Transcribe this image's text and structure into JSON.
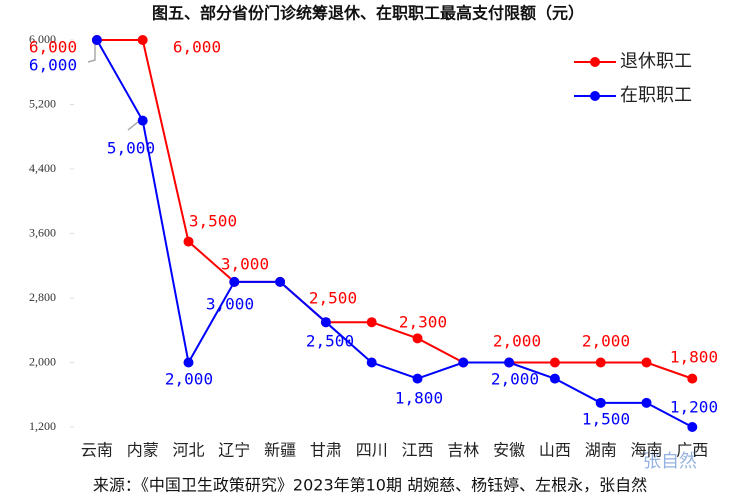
{
  "chart_data": {
    "type": "line",
    "title": "图五、部分省份门诊统筹退休、在职职工最高支付限额（元）",
    "source": "来源：《中国卫生政策研究》2023年第10期 胡婉慈、杨钰婷、左根永，张自然",
    "watermark": "张自然",
    "categories": [
      "云南",
      "内蒙",
      "河北",
      "辽宁",
      "新疆",
      "甘肃",
      "四川",
      "江西",
      "吉林",
      "安徽",
      "山西",
      "湖南",
      "海南",
      "广西"
    ],
    "series": [
      {
        "name": "退休职工",
        "color": "#ff0000",
        "values": [
          6000,
          6000,
          3500,
          3000,
          3000,
          2500,
          2500,
          2300,
          2000,
          2000,
          2000,
          2000,
          2000,
          1800
        ],
        "value_labels": [
          "6,000",
          "6,000",
          "3,500",
          "3,000",
          null,
          "2,500",
          null,
          "2,300",
          null,
          "2,000",
          null,
          "2,000",
          null,
          "1,800"
        ]
      },
      {
        "name": "在职职工",
        "color": "#0000ff",
        "values": [
          6000,
          5000,
          2000,
          3000,
          3000,
          2500,
          2000,
          1800,
          2000,
          2000,
          1800,
          1500,
          1500,
          1200
        ],
        "value_labels": [
          "6,000",
          "5,000",
          "2,000",
          null,
          "3,000",
          "2,500",
          null,
          "1,800",
          null,
          "2,000",
          null,
          "1,500",
          null,
          "1,200"
        ]
      }
    ],
    "ylim": [
      1200,
      6000
    ],
    "yticks": [
      {
        "value": 1200,
        "label": "1,200"
      },
      {
        "value": 2000,
        "label": "2,000"
      },
      {
        "value": 2800,
        "label": "2,800"
      },
      {
        "value": 3600,
        "label": "3,600"
      },
      {
        "value": 4400,
        "label": "4,400"
      },
      {
        "value": 5200,
        "label": "5,200"
      },
      {
        "value": 6000,
        "label": "6,000"
      }
    ],
    "legend": "top-right"
  }
}
